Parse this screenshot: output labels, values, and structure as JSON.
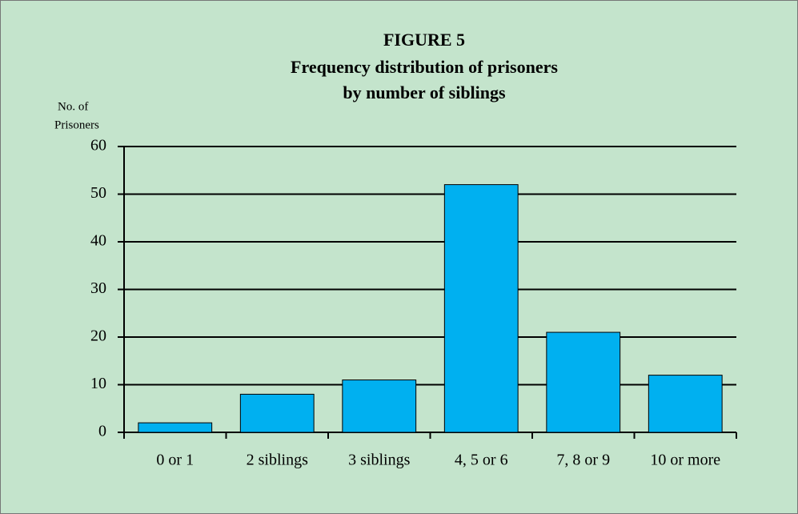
{
  "chart_data": {
    "type": "bar",
    "title": "FIGURE 5",
    "subtitle": [
      "Frequency distribution of prisoners",
      "by number of siblings"
    ],
    "ylabel": [
      "No. of",
      "Prisoners"
    ],
    "categories": [
      "0 or 1",
      "2 siblings",
      "3 siblings",
      "4, 5 or 6",
      "7, 8 or 9",
      "10 or more"
    ],
    "values": [
      2,
      8,
      11,
      52,
      21,
      12
    ],
    "color": "#00b0f0",
    "ylim": [
      0,
      60
    ],
    "yticks": [
      0,
      10,
      20,
      30,
      40,
      50,
      60
    ],
    "grid": true
  }
}
